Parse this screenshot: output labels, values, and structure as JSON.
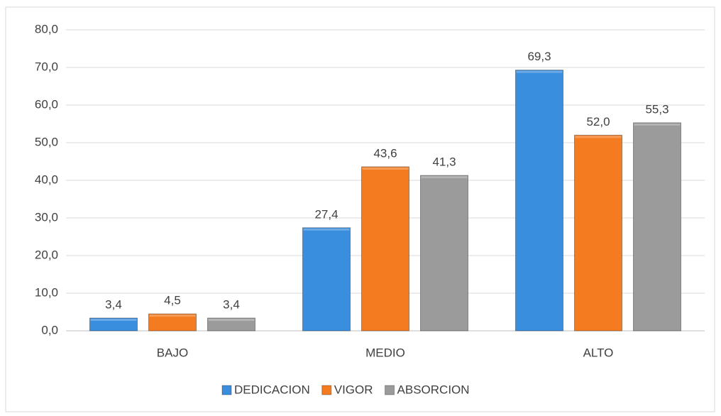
{
  "chart_data": {
    "type": "bar",
    "categories": [
      "BAJO",
      "MEDIO",
      "ALTO"
    ],
    "series": [
      {
        "name": "DEDICACION",
        "color": "#3a8ede",
        "values": [
          3.4,
          27.4,
          69.3
        ],
        "value_labels": [
          "3,4",
          "27,4",
          "69,3"
        ]
      },
      {
        "name": "VIGOR",
        "color": "#f47b20",
        "values": [
          4.5,
          43.6,
          52.0
        ],
        "value_labels": [
          "4,5",
          "43,6",
          "52,0"
        ]
      },
      {
        "name": "ABSORCION",
        "color": "#9b9b9b",
        "values": [
          3.4,
          41.3,
          55.3
        ],
        "value_labels": [
          "3,4",
          "41,3",
          "55,3"
        ]
      }
    ],
    "ylim": [
      0,
      80
    ],
    "yticks": [
      {
        "value": 0,
        "label": "0,0"
      },
      {
        "value": 10,
        "label": "10,0"
      },
      {
        "value": 20,
        "label": "20,0"
      },
      {
        "value": 30,
        "label": "30,0"
      },
      {
        "value": 40,
        "label": "40,0"
      },
      {
        "value": 50,
        "label": "50,0"
      },
      {
        "value": 60,
        "label": "60,0"
      },
      {
        "value": 70,
        "label": "70,0"
      },
      {
        "value": 80,
        "label": "80,0"
      }
    ],
    "grid": true,
    "legend": "bottom"
  }
}
